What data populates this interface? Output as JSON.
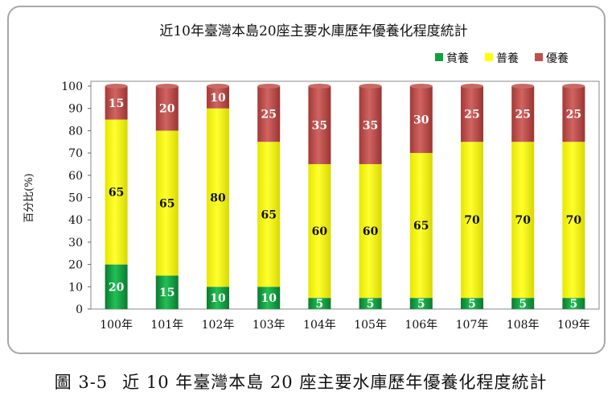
{
  "chart_data": {
    "type": "bar",
    "stacked": true,
    "title": "近10年臺灣本島20座主要水庫歷年優養化程度統計",
    "xlabel": "",
    "ylabel": "百分比(%)",
    "ylim": [
      0,
      100
    ],
    "yticks": [
      0,
      10,
      20,
      30,
      40,
      50,
      60,
      70,
      80,
      90,
      100
    ],
    "legend_position": "top-right",
    "categories": [
      "100年",
      "101年",
      "102年",
      "103年",
      "104年",
      "105年",
      "106年",
      "107年",
      "108年",
      "109年"
    ],
    "series": [
      {
        "name": "貧養",
        "color": "#12a040",
        "label_color": "#ffffff",
        "values": [
          20,
          15,
          10,
          10,
          5,
          5,
          5,
          5,
          5,
          5
        ]
      },
      {
        "name": "普養",
        "color": "#ffff00",
        "label_color": "#111111",
        "values": [
          65,
          65,
          80,
          65,
          60,
          60,
          65,
          70,
          70,
          70
        ]
      },
      {
        "name": "優養",
        "color": "#c0504d",
        "label_color": "#ffffff",
        "values": [
          15,
          20,
          10,
          25,
          35,
          35,
          30,
          25,
          25,
          25
        ]
      }
    ]
  },
  "caption": {
    "figure_no": "圖 3-5",
    "text": "近 10 年臺灣本島 20 座主要水庫歷年優養化程度統計"
  }
}
